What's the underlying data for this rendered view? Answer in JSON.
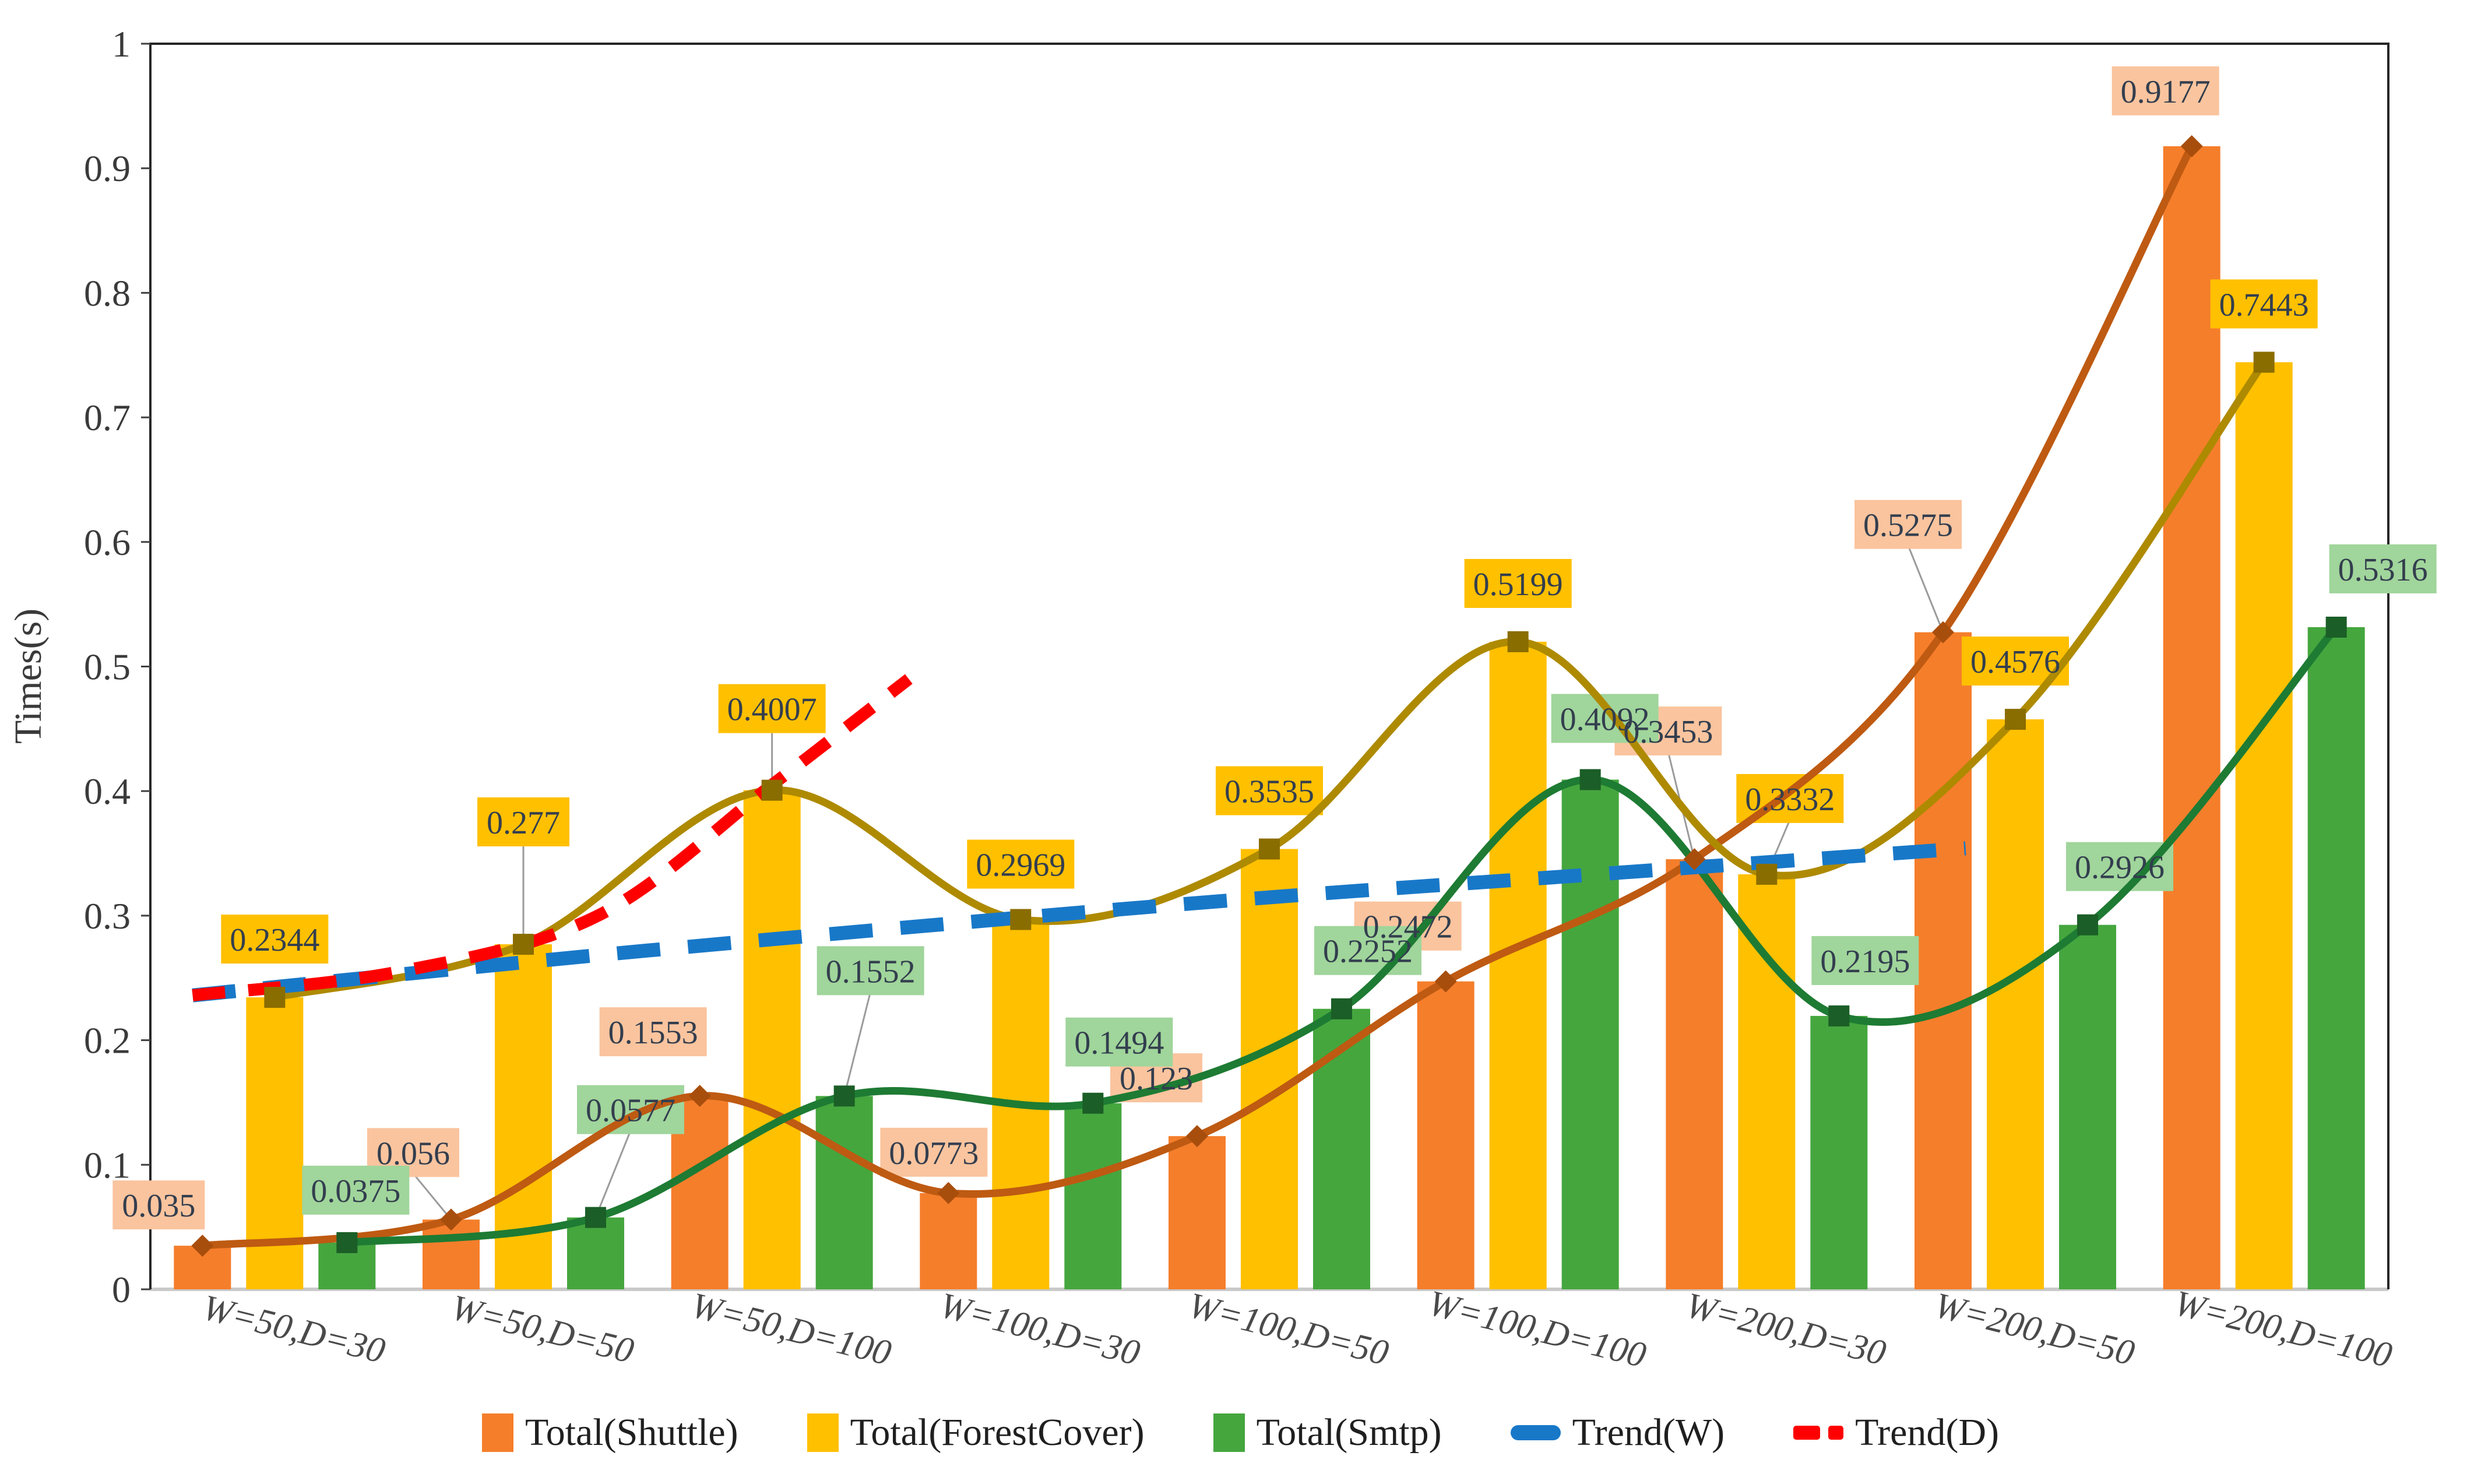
{
  "chart_data": {
    "type": "bar",
    "title": "",
    "xlabel": "",
    "ylabel": "Times(s)",
    "ylim": [
      0,
      1
    ],
    "ytick_step": 0.1,
    "ytick_labels": [
      "1",
      "0.9",
      "0.8",
      "0.7",
      "0.6",
      "0.5",
      "0.4",
      "0.3",
      "0.2",
      "0.1",
      "0"
    ],
    "grid": false,
    "legend_position": "bottom",
    "categories": [
      "W=50,D=30",
      "W=50,D=50",
      "W=50,D=100",
      "W=100,D=30",
      "W=100,D=50",
      "W=100,D=100",
      "W=200,D=30",
      "W=200,D=50",
      "W=200,D=100"
    ],
    "series": [
      {
        "name": "Total(Shuttle)",
        "render": "bar+smooth-line",
        "values": [
          0.035,
          0.056,
          0.1553,
          0.0773,
          0.123,
          0.2472,
          0.3453,
          0.5275,
          0.9177
        ],
        "labels": [
          "0.035",
          "0.056",
          "0.1553",
          "0.0773",
          "0.123",
          "0.2472",
          "0.3453",
          "0.5275",
          "0.9177"
        ],
        "bar_color": "#F57E2B",
        "line_color": "#BE5A12",
        "marker": "diamond",
        "marker_color": "#A84E0D",
        "label_bg": "#FAC49E"
      },
      {
        "name": "Total(ForestCover)",
        "render": "bar+smooth-line",
        "values": [
          0.2344,
          0.277,
          0.4007,
          0.2969,
          0.3535,
          0.5199,
          0.3332,
          0.4576,
          0.7443
        ],
        "labels": [
          "0.2344",
          "0.277",
          "0.4007",
          "0.2969",
          "0.3535",
          "0.5199",
          "0.3332",
          "0.4576",
          "0.7443"
        ],
        "bar_color": "#FFC000",
        "line_color": "#AE8A00",
        "marker": "square",
        "marker_color": "#8A6D00",
        "label_bg": "#FFC000"
      },
      {
        "name": "Total(Smtp)",
        "render": "bar+smooth-line",
        "values": [
          0.0375,
          0.0577,
          0.1552,
          0.1494,
          0.2252,
          0.4092,
          0.2195,
          0.2926,
          0.5316
        ],
        "labels": [
          "0.0375",
          "0.0577",
          "0.1552",
          "0.1494",
          "0.2252",
          "0.4092",
          "0.2195",
          "0.2926",
          "0.5316"
        ],
        "bar_color": "#45A63E",
        "line_color": "#1E7B33",
        "marker": "square",
        "marker_color": "#1B5E27",
        "label_bg": "#A0D59B"
      }
    ],
    "trendlines": [
      {
        "name": "Trend(W)",
        "color": "#1878C8",
        "style": "dashed",
        "points_cat_val": [
          [
            0.17,
            0.236
          ],
          [
            2.0,
            0.272
          ],
          [
            4.2,
            0.31
          ],
          [
            5.8,
            0.333
          ],
          [
            7.3,
            0.354
          ]
        ]
      },
      {
        "name": "Trend(D)",
        "color": "#FE0000",
        "style": "dashed",
        "points_cat_val": [
          [
            0.17,
            0.236
          ],
          [
            1.0,
            0.255
          ],
          [
            1.8,
            0.3
          ],
          [
            2.5,
            0.405
          ],
          [
            3.05,
            0.49
          ]
        ]
      }
    ],
    "label_text_color": "#333E4E",
    "axis_color": "#262626",
    "baseline_color": "#C9C9C9"
  },
  "legend": {
    "items": [
      {
        "label": "Total(Shuttle)",
        "swatch": "bar",
        "color": "#F57E2B"
      },
      {
        "label": "Total(ForestCover)",
        "swatch": "bar",
        "color": "#FFC000"
      },
      {
        "label": "Total(Smtp)",
        "swatch": "bar",
        "color": "#45A63E"
      },
      {
        "label": "Trend(W)",
        "swatch": "dash",
        "color": "#1878C8"
      },
      {
        "label": "Trend(D)",
        "swatch": "double-dash",
        "color": "#FE0000"
      }
    ]
  }
}
